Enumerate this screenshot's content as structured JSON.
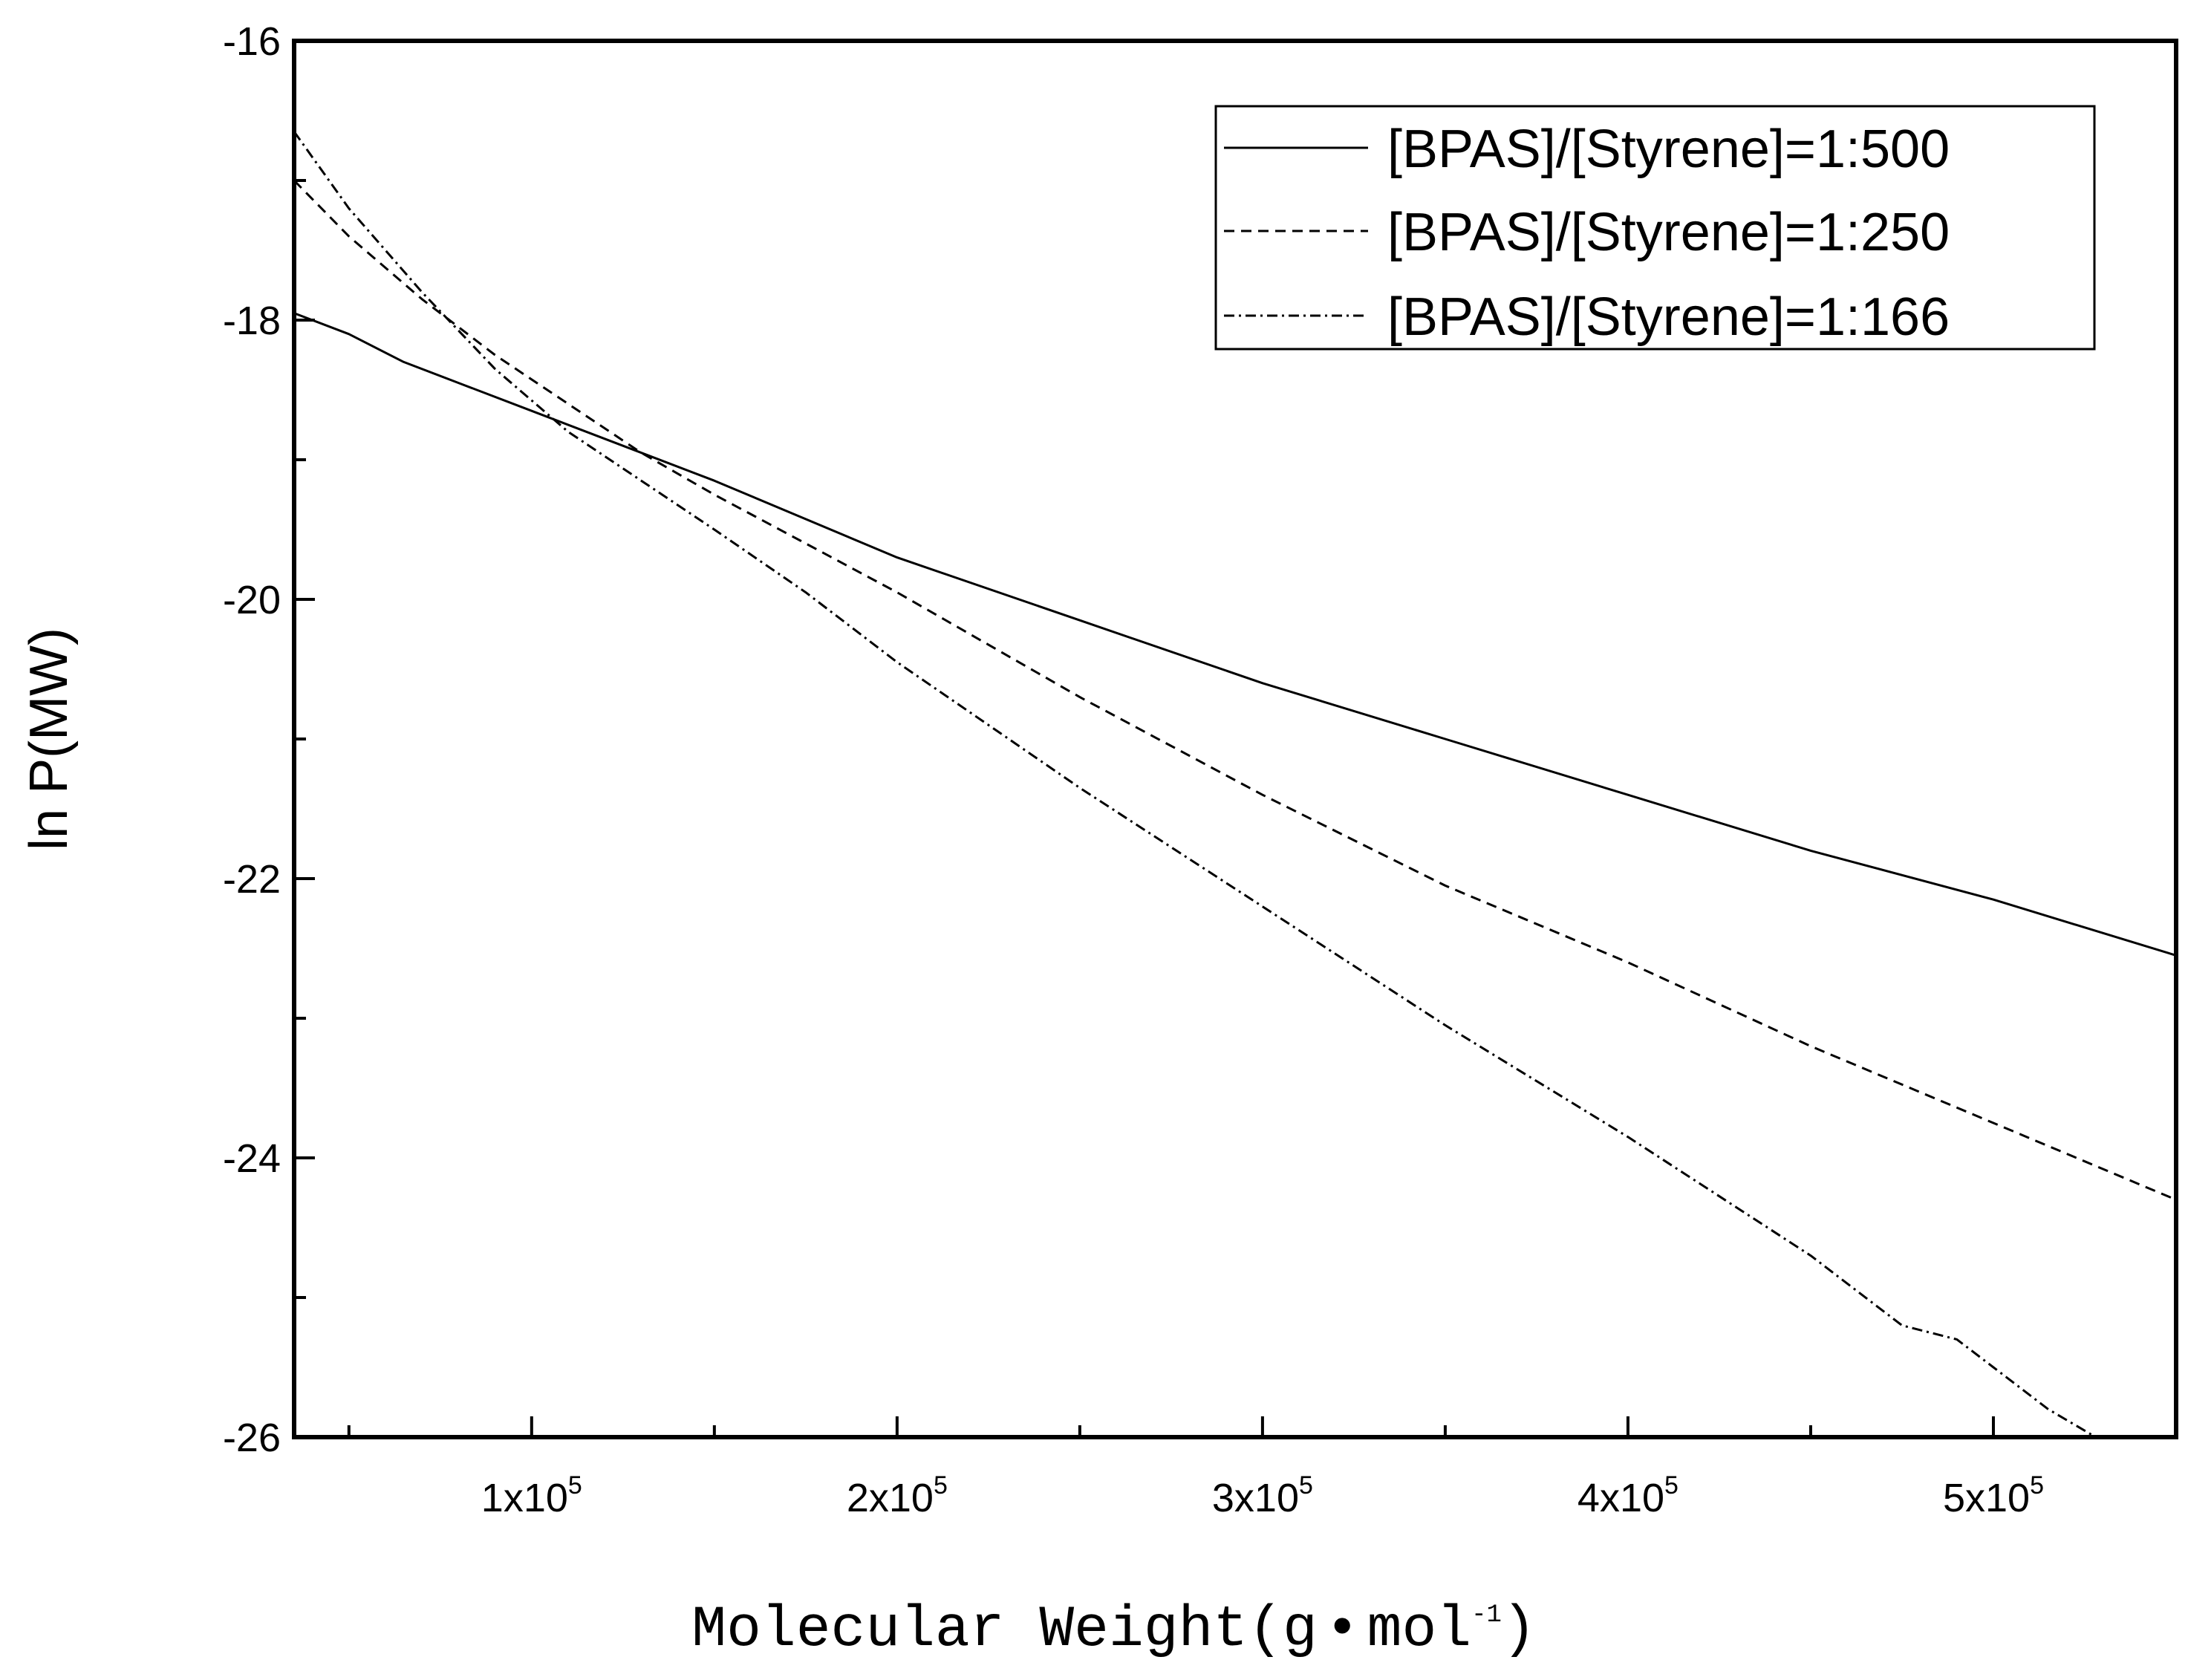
{
  "chart_data": {
    "type": "line",
    "title": "",
    "xlabel_main": "Molecular Weight(g",
    "xlabel_dot": "•",
    "xlabel_unit": "mol",
    "xlabel_exp": "-1",
    "xlabel_close": ")",
    "ylabel": "ln P(MW)",
    "xlim": [
      35000,
      550000
    ],
    "ylim": [
      -26,
      -16
    ],
    "x_ticks": [
      {
        "value": 100000,
        "base": "1x10",
        "exp": "5"
      },
      {
        "value": 200000,
        "base": "2x10",
        "exp": "5"
      },
      {
        "value": 300000,
        "base": "3x10",
        "exp": "5"
      },
      {
        "value": 400000,
        "base": "4x10",
        "exp": "5"
      },
      {
        "value": 500000,
        "base": "5x10",
        "exp": "5"
      }
    ],
    "x_minor_ticks": [
      50000,
      150000,
      250000,
      350000,
      450000,
      550000
    ],
    "y_ticks": [
      {
        "value": -16,
        "label": "-16"
      },
      {
        "value": -18,
        "label": "-18"
      },
      {
        "value": -20,
        "label": "-20"
      },
      {
        "value": -22,
        "label": "-22"
      },
      {
        "value": -24,
        "label": "-24"
      },
      {
        "value": -26,
        "label": "-26"
      }
    ],
    "y_minor_ticks": [
      -17,
      -19,
      -21,
      -23,
      -25
    ],
    "grid": false,
    "legend_position": "top-right",
    "series": [
      {
        "name": "[BPAS]/[Styrene]=1:500",
        "style": "solid",
        "x": [
          35000,
          50000,
          65000,
          80000,
          100000,
          120000,
          150000,
          200000,
          250000,
          300000,
          350000,
          400000,
          450000,
          500000,
          550000
        ],
        "y": [
          -17.95,
          -18.1,
          -18.3,
          -18.45,
          -18.65,
          -18.85,
          -19.15,
          -19.7,
          -20.15,
          -20.6,
          -21.0,
          -21.4,
          -21.8,
          -22.15,
          -22.55
        ]
      },
      {
        "name": "[BPAS]/[Styrene]=1:250",
        "style": "dashed",
        "x": [
          35000,
          50000,
          70000,
          90000,
          110000,
          130000,
          150000,
          175000,
          200000,
          250000,
          300000,
          350000,
          400000,
          450000,
          500000,
          550000
        ],
        "y": [
          -17.0,
          -17.4,
          -17.85,
          -18.25,
          -18.6,
          -18.95,
          -19.25,
          -19.6,
          -19.95,
          -20.7,
          -21.4,
          -22.05,
          -22.6,
          -23.2,
          -23.75,
          -24.3
        ]
      },
      {
        "name": "[BPAS]/[Styrene]=1:166",
        "style": "dashdot",
        "x": [
          35000,
          50000,
          70000,
          90000,
          110000,
          130000,
          150000,
          175000,
          200000,
          250000,
          300000,
          350000,
          400000,
          450000,
          475000,
          490000,
          500000,
          515000,
          528000
        ],
        "y": [
          -16.65,
          -17.2,
          -17.8,
          -18.35,
          -18.8,
          -19.15,
          -19.5,
          -19.95,
          -20.45,
          -21.35,
          -22.2,
          -23.05,
          -23.85,
          -24.7,
          -25.2,
          -25.3,
          -25.5,
          -25.8,
          -26.0
        ]
      }
    ]
  }
}
